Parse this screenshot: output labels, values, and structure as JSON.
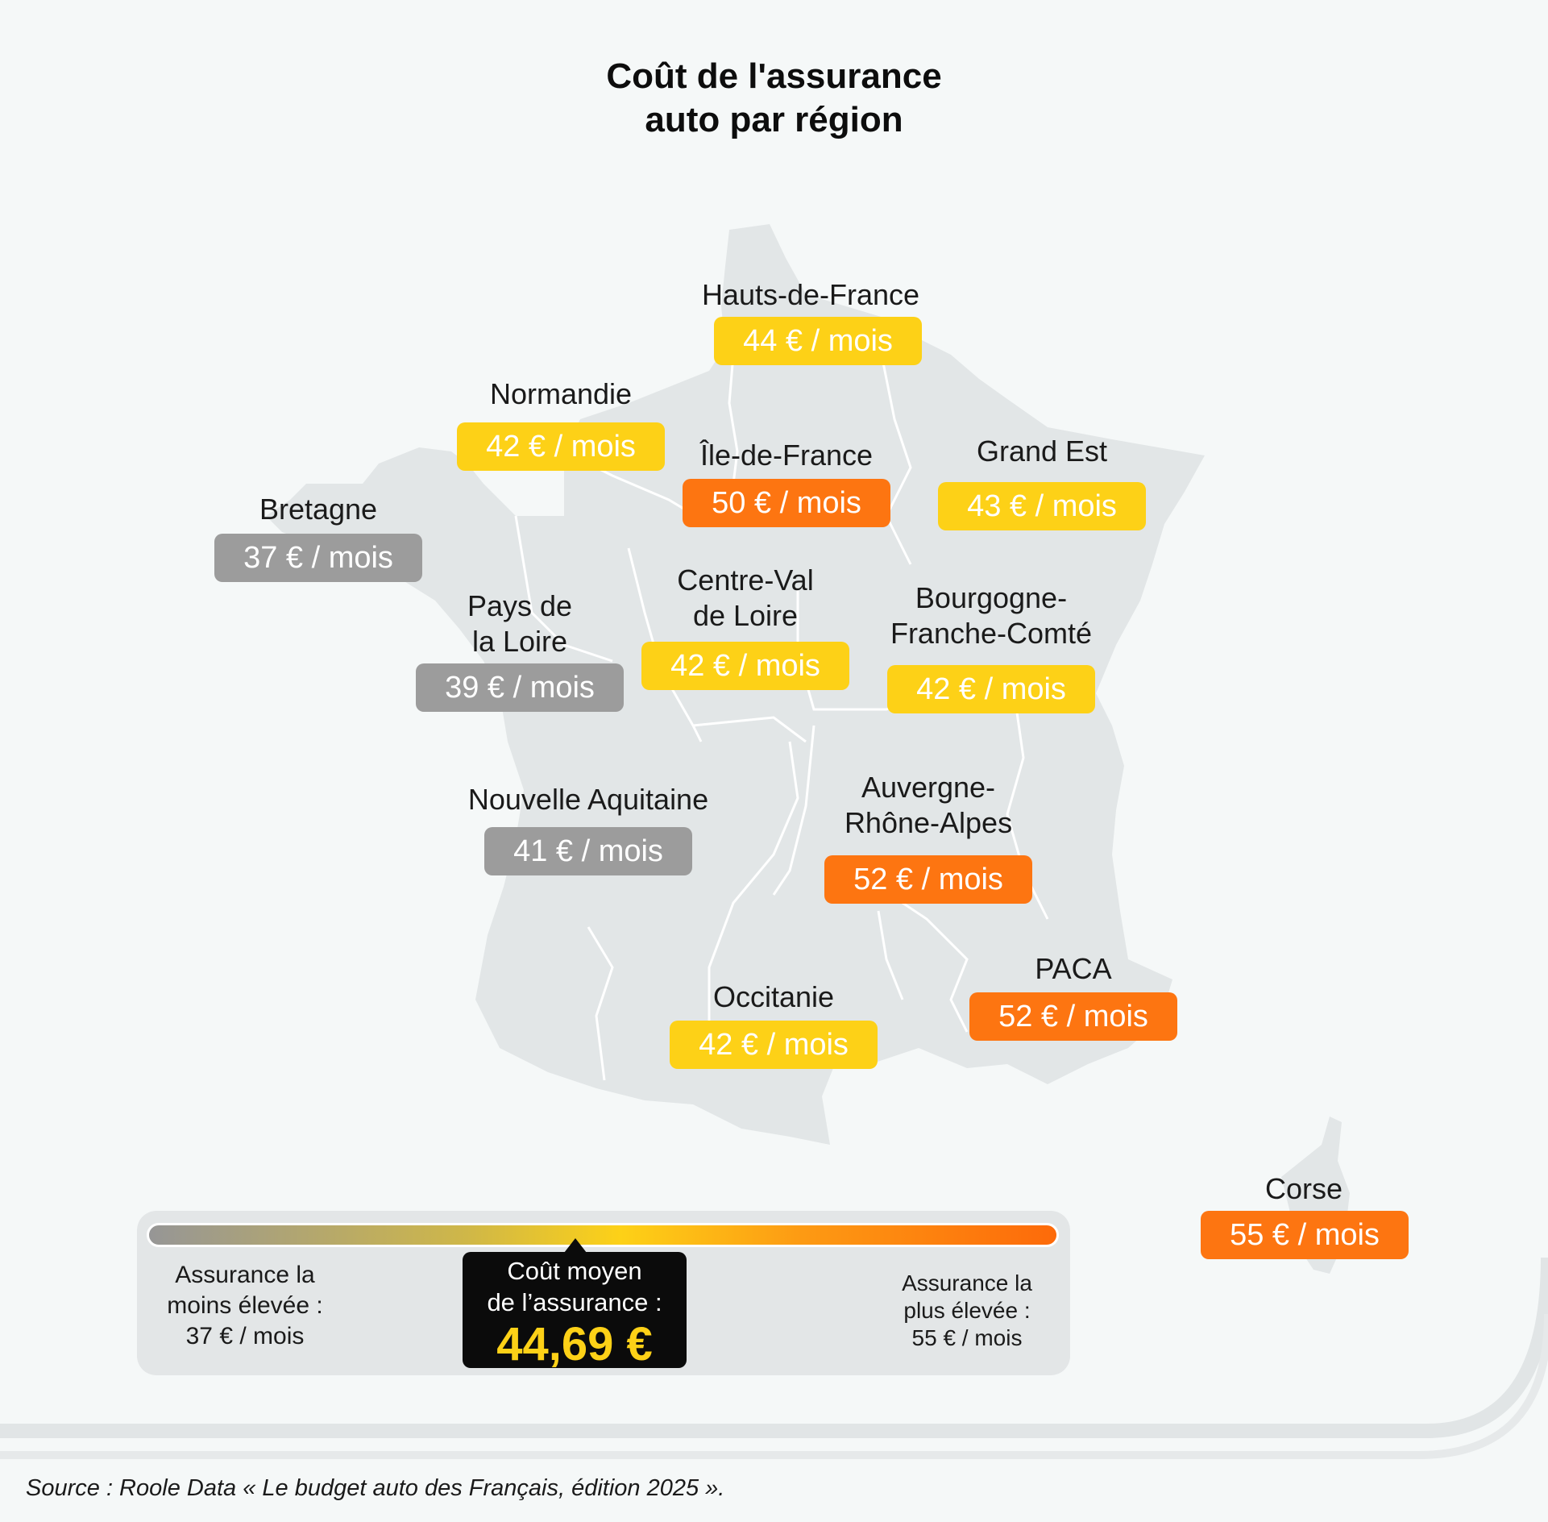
{
  "title": {
    "line1": "Coût de l'assurance",
    "line2": "auto par région"
  },
  "regions": {
    "hauts_de_france": {
      "name": "Hauts-de-France",
      "price": "44 € / mois"
    },
    "normandie": {
      "name": "Normandie",
      "price": "42 € / mois"
    },
    "ile_de_france": {
      "name": "Île-de-France",
      "price": "50 € / mois"
    },
    "grand_est": {
      "name": "Grand Est",
      "price": "43 € / mois"
    },
    "bretagne": {
      "name": "Bretagne",
      "price": "37 € / mois"
    },
    "pays_de_la_loire": {
      "name_line1": "Pays de",
      "name_line2": "la Loire",
      "price": "39 € / mois"
    },
    "centre_val_de_loire": {
      "name_line1": "Centre-Val",
      "name_line2": "de Loire",
      "price": "42 € / mois"
    },
    "bourgogne_franche_comte": {
      "name_line1": "Bourgogne-",
      "name_line2": "Franche-Comté",
      "price": "42 € / mois"
    },
    "nouvelle_aquitaine": {
      "name": "Nouvelle Aquitaine",
      "price": "41 € / mois"
    },
    "auvergne_rhone_alpes": {
      "name_line1": "Auvergne-",
      "name_line2": "Rhône-Alpes",
      "price": "52 € / mois"
    },
    "paca": {
      "name": "PACA",
      "price": "52 € / mois"
    },
    "occitanie": {
      "name": "Occitanie",
      "price": "42 € / mois"
    },
    "corse": {
      "name": "Corse",
      "price": "55 € / mois"
    }
  },
  "legend": {
    "low_line1": "Assurance la",
    "low_line2": "moins élevée :",
    "low_line3": "37 € / mois",
    "avg_line1": "Coût moyen",
    "avg_line2": "de l’assurance :",
    "avg_value": "44,69 €",
    "high_line1": "Assurance la",
    "high_line2": "plus élevée :",
    "high_line3": "55 € / mois"
  },
  "colors": {
    "low": "#9c9c9c",
    "mid": "#fdd117",
    "high": "#fd7511",
    "map_fill": "#e2e6e7",
    "background": "#f5f8f8"
  },
  "source": "Source : Roole Data « Le budget auto des Français, édition 2025 »."
}
